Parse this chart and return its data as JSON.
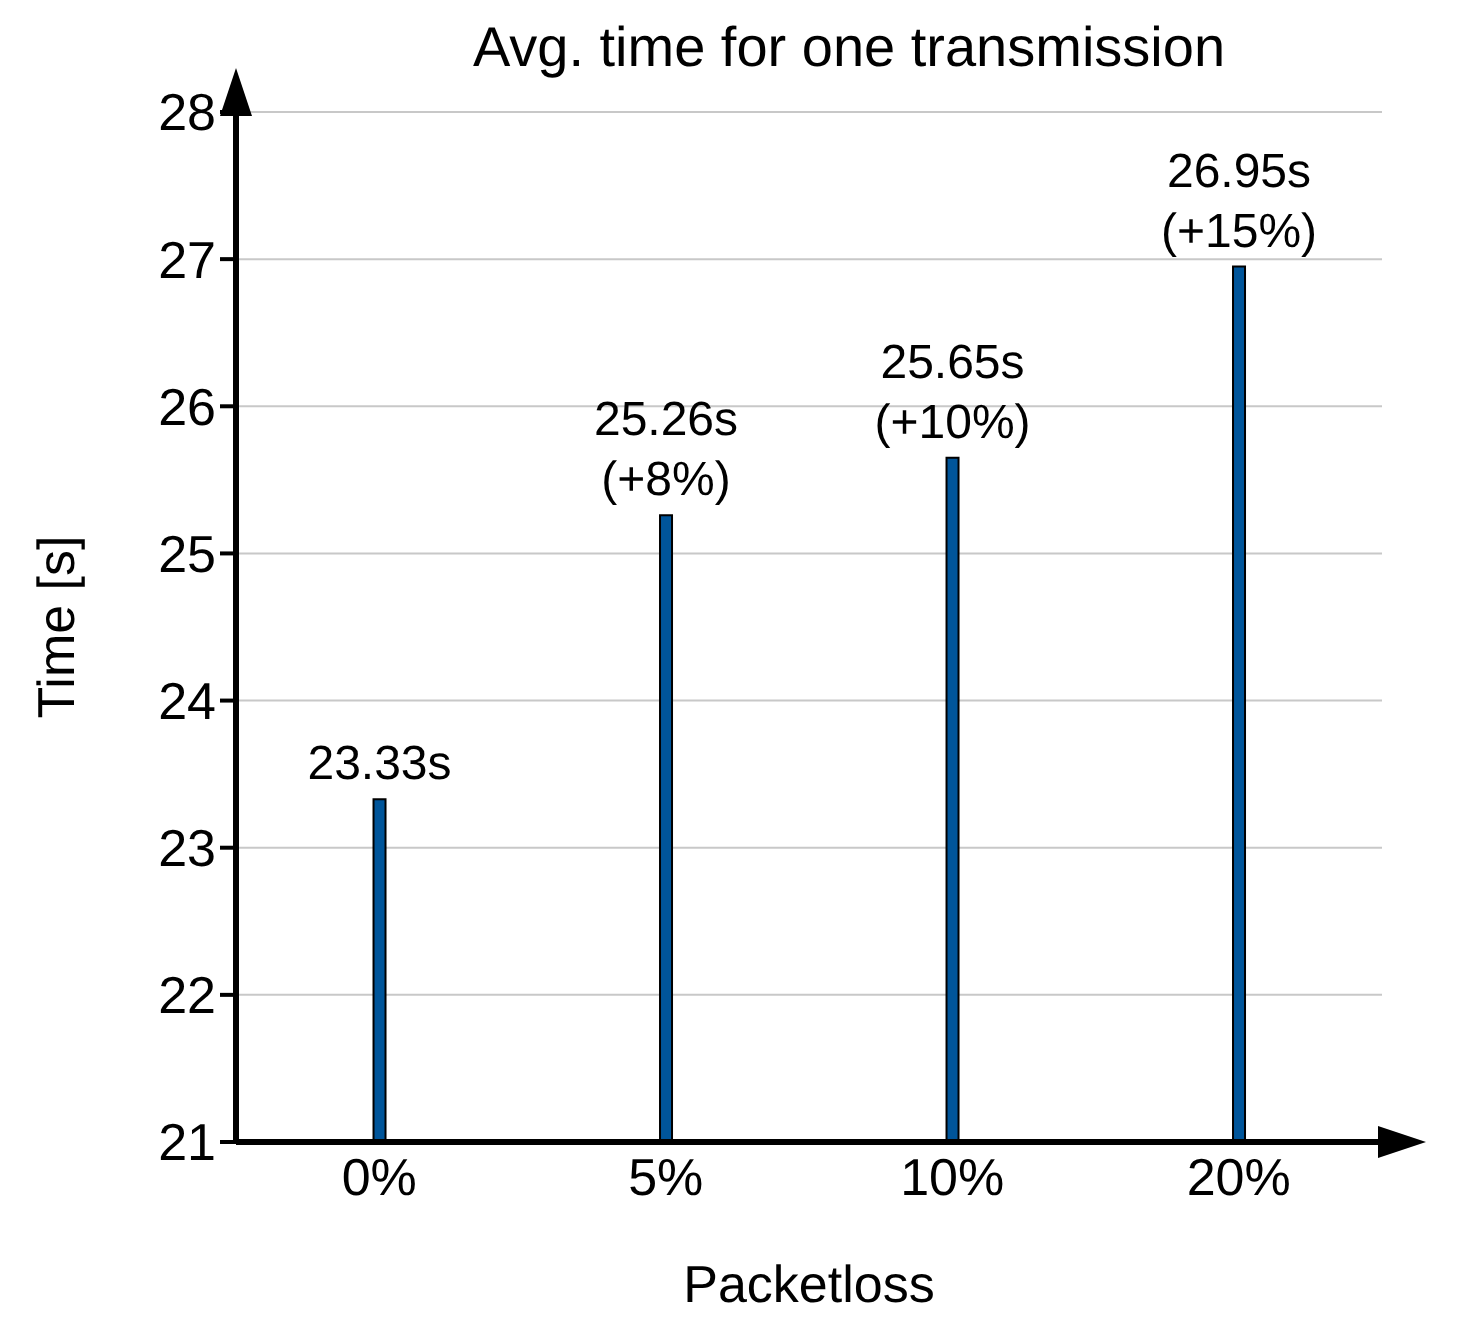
{
  "chart_data": {
    "type": "bar",
    "title": "Avg. time for one transmission",
    "xlabel": "Packetloss",
    "ylabel": "Time [s]",
    "categories": [
      "0%",
      "5%",
      "10%",
      "20%"
    ],
    "values": [
      23.33,
      25.26,
      25.65,
      26.95
    ],
    "value_labels": [
      "23.33s",
      "25.26s\n(+8%)",
      "25.65s\n(+10%)",
      "26.95s\n(+15%)"
    ],
    "color": "#00559a",
    "ylim": [
      21,
      28
    ],
    "yticks": [
      21,
      22,
      23,
      24,
      25,
      26,
      27,
      28
    ],
    "grid": "y"
  }
}
